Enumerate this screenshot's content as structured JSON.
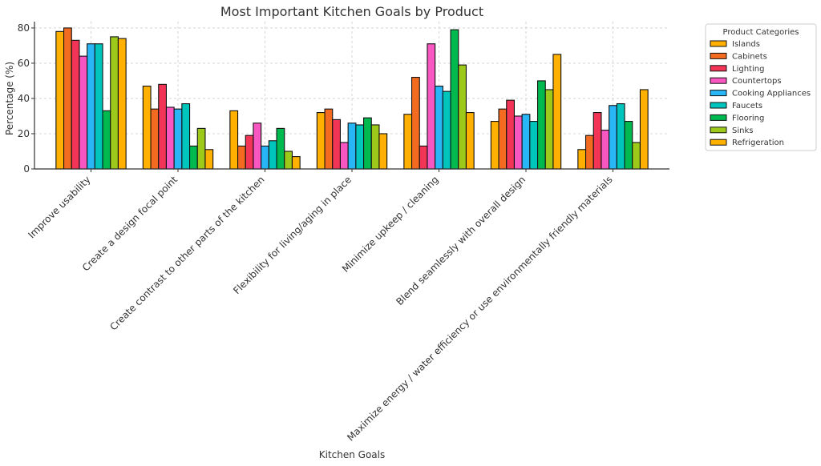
{
  "chart_data": {
    "type": "bar",
    "title": "Most Important Kitchen Goals by Product",
    "xlabel": "Kitchen Goals",
    "ylabel": "Percentage (%)",
    "ylim": [
      0,
      83.6
    ],
    "yticks": [
      0,
      20,
      40,
      60,
      80
    ],
    "grid": true,
    "legend_title": "Product Categories",
    "legend_position": "outside-top-right",
    "categories": [
      "Improve usability",
      "Create a design focal point",
      "Create contrast to other parts of the kitchen",
      "Flexibility for living/aging in place",
      "Minimize upkeep / cleaning",
      "Blend seamlessly with overall design",
      "Maximize energy / water efficiency or use environmentally friendly materials"
    ],
    "series": [
      {
        "name": "Islands",
        "color": "#FFB000",
        "values": [
          78,
          47,
          33,
          32,
          31,
          27,
          11
        ]
      },
      {
        "name": "Cabinets",
        "color": "#F26B21",
        "values": [
          80,
          34,
          13,
          34,
          52,
          34,
          19
        ]
      },
      {
        "name": "Lighting",
        "color": "#F23557",
        "values": [
          73,
          48,
          19,
          28,
          13,
          39,
          32
        ]
      },
      {
        "name": "Countertops",
        "color": "#F857C2",
        "values": [
          64,
          35,
          26,
          15,
          71,
          30,
          22
        ]
      },
      {
        "name": "Cooking Appliances",
        "color": "#29B6F6",
        "values": [
          71,
          34,
          13,
          26,
          47,
          31,
          36
        ]
      },
      {
        "name": "Faucets",
        "color": "#00C5BC",
        "values": [
          71,
          37,
          16,
          25,
          44,
          27,
          37
        ]
      },
      {
        "name": "Flooring",
        "color": "#00BA50",
        "values": [
          33,
          13,
          23,
          29,
          79,
          50,
          27
        ]
      },
      {
        "name": "Sinks",
        "color": "#9DC91A",
        "values": [
          75,
          23,
          10,
          25,
          59,
          45,
          15
        ]
      },
      {
        "name": "Refrigeration",
        "color": "#FFB000",
        "values": [
          74,
          11,
          7,
          20,
          32,
          65,
          45
        ]
      }
    ]
  }
}
